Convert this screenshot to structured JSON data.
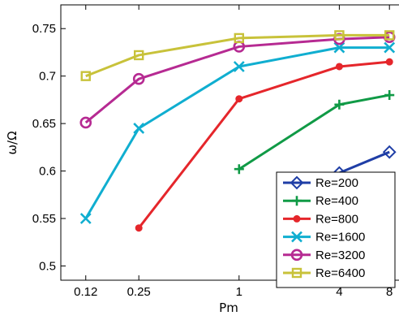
{
  "chart_data": {
    "type": "line",
    "xlabel": "Pm",
    "ylabel": "ω/Ω",
    "x_scale": "log",
    "xlim": [
      0.085,
      11.3
    ],
    "ylim": [
      0.485,
      0.775
    ],
    "x_ticks": [
      0.12,
      0.25,
      1,
      4,
      8
    ],
    "x_tick_labels": [
      "0.12",
      "0.25",
      "1",
      "4",
      "8"
    ],
    "y_ticks": [
      0.5,
      0.55,
      0.6,
      0.65,
      0.7,
      0.75
    ],
    "y_tick_labels": [
      "0.5",
      "0.55",
      "0.6",
      "0.65",
      "0.7",
      "0.75"
    ],
    "grid": false,
    "legend_position": "bottom-right",
    "series": [
      {
        "name": "Re=200",
        "color": "#1f3ea6",
        "marker": "diamond",
        "x": [
          4,
          8
        ],
        "y": [
          0.598,
          0.62
        ]
      },
      {
        "name": "Re=400",
        "color": "#109a46",
        "marker": "plus",
        "x": [
          1,
          4,
          8
        ],
        "y": [
          0.602,
          0.67,
          0.68
        ]
      },
      {
        "name": "Re=800",
        "color": "#e5262b",
        "marker": "dot",
        "x": [
          0.25,
          1,
          4,
          8
        ],
        "y": [
          0.54,
          0.676,
          0.71,
          0.715
        ]
      },
      {
        "name": "Re=1600",
        "color": "#10aed0",
        "marker": "x",
        "x": [
          0.12,
          0.25,
          1,
          4,
          8
        ],
        "y": [
          0.55,
          0.645,
          0.71,
          0.73,
          0.73
        ]
      },
      {
        "name": "Re=3200",
        "color": "#b62a92",
        "marker": "circle",
        "x": [
          0.12,
          0.25,
          1,
          4,
          8
        ],
        "y": [
          0.651,
          0.697,
          0.731,
          0.739,
          0.741
        ]
      },
      {
        "name": "Re=6400",
        "color": "#c8c23a",
        "marker": "square",
        "x": [
          0.12,
          0.25,
          1,
          4,
          8
        ],
        "y": [
          0.7,
          0.722,
          0.74,
          0.743,
          0.743
        ]
      }
    ]
  }
}
